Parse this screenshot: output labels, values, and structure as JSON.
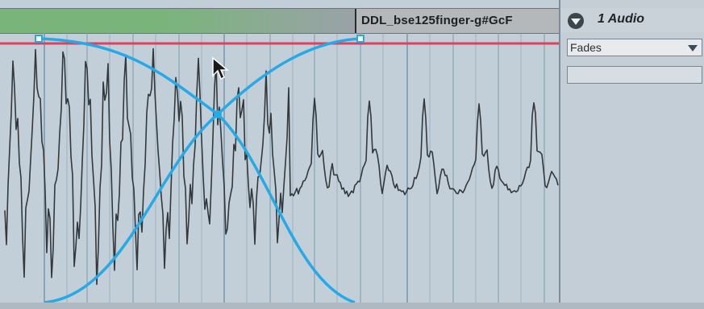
{
  "clip": {
    "name": "DDL_bse125finger-g#GcF",
    "header_color": "#79b57a",
    "header_fade_color": "#9aa2a8"
  },
  "track": {
    "name": "1 Audio",
    "envelope_chooser": {
      "selected": "Fades"
    },
    "envelope_value": ""
  },
  "icons": {
    "fold": "triangle-down-icon",
    "dropdown": "chevron-down-icon",
    "cursor": "mouse-pointer-icon"
  },
  "colors": {
    "fade_curve": "#27a9e6",
    "volume_line": "#e0405e",
    "waveform": "#33383c",
    "grid_line": "#7f98ab"
  }
}
